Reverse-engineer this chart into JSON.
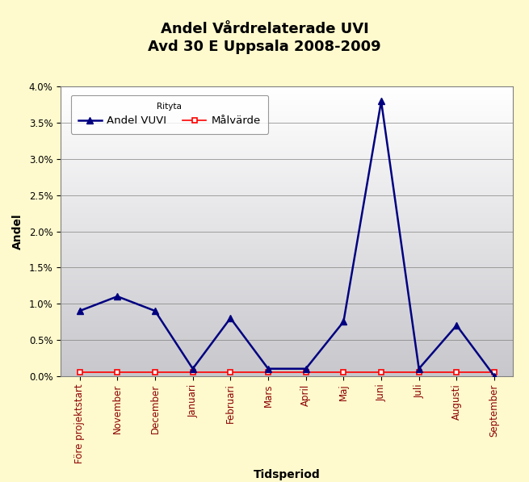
{
  "title": "Andel Vårdrelaterade UVI\nAvd 30 E Uppsala 2008-2009",
  "xlabel": "Tidsperiod",
  "ylabel": "Andel",
  "categories": [
    "Före projektstart",
    "November",
    "December",
    "Januari",
    "Februari",
    "Mars",
    "April",
    "Maj",
    "Juni",
    "Juli",
    "Augusti",
    "September"
  ],
  "vuvi_values": [
    0.009,
    0.011,
    0.009,
    0.001,
    0.008,
    0.001,
    0.001,
    0.0075,
    0.038,
    0.001,
    0.007,
    0.0
  ],
  "malvarde_values": [
    0.0005,
    0.0005,
    0.0005,
    0.0005,
    0.0005,
    0.0005,
    0.0005,
    0.0005,
    0.0005,
    0.0005,
    0.0005,
    0.0005
  ],
  "vuvi_color": "#000080",
  "malvarde_color": "#FF0000",
  "background_outer": "#FFFACD",
  "ylim": [
    0.0,
    0.04
  ],
  "yticks": [
    0.0,
    0.005,
    0.01,
    0.015,
    0.02,
    0.025,
    0.03,
    0.035,
    0.04
  ],
  "ytick_labels": [
    "0.0%",
    "0.5%",
    "1.0%",
    "1.5%",
    "2.0%",
    "2.5%",
    "3.0%",
    "3.5%",
    "4.0%"
  ],
  "legend_title": "Rityta",
  "legend_vuvi": "Andel VUVI",
  "legend_malvarde": "Målvärde",
  "title_fontsize": 13,
  "axis_label_fontsize": 10,
  "tick_fontsize": 8.5,
  "legend_fontsize": 9.5
}
